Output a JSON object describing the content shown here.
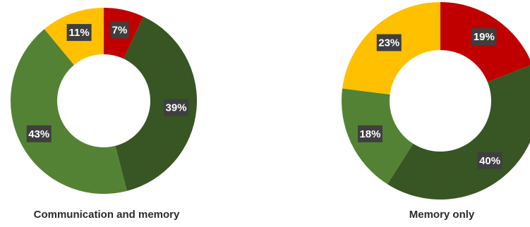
{
  "chart_data": [
    {
      "type": "pie",
      "title": "Communication and memory",
      "series": [
        {
          "values": [
            7,
            39,
            43,
            11
          ],
          "labels": [
            "7%",
            "39%",
            "43%",
            "11%"
          ]
        }
      ]
    },
    {
      "type": "pie",
      "title": "Memory only",
      "series": [
        {
          "values": [
            19,
            40,
            18,
            23
          ],
          "labels": [
            "19%",
            "40%",
            "18%",
            "23%"
          ]
        }
      ]
    }
  ],
  "colors": {
    "slice_colors": [
      "#c00000",
      "#375623",
      "#548235",
      "#ffc000"
    ],
    "label_box": "#3f3f3f",
    "label_text": "#ffffff"
  }
}
